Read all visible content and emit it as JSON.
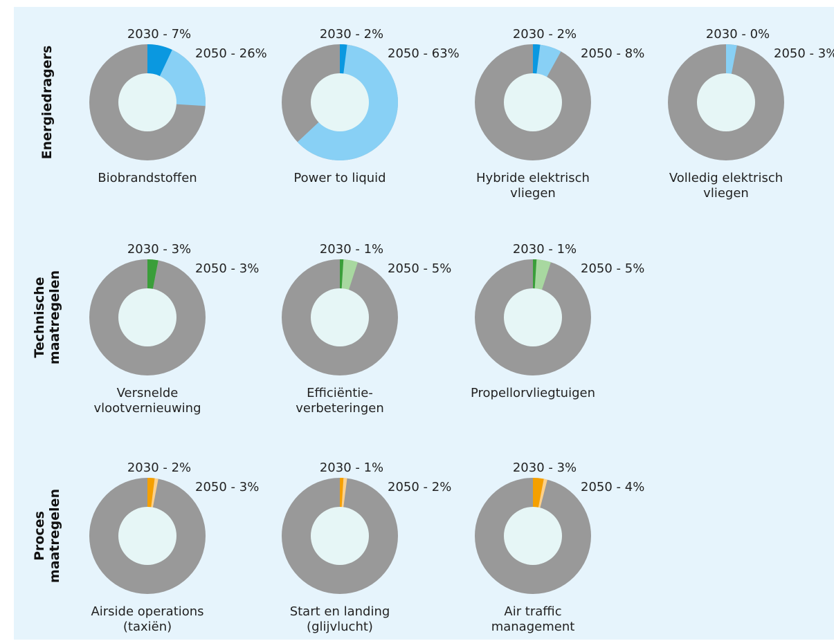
{
  "rows": [
    {
      "label": "Energiedragers"
    },
    {
      "label": "Technische\nmaatregelen"
    },
    {
      "label": "Proces\nmaatregelen"
    }
  ],
  "chart_data": [
    {
      "type": "donut",
      "title": "Biobrandstoffen",
      "values": [
        7,
        26
      ],
      "value_labels": [
        "2030 - 7%",
        "2050 - 26%"
      ],
      "colors": [
        "#0a98e0",
        "#88d0f5"
      ],
      "base_color": "#999999"
    },
    {
      "type": "donut",
      "title": "Power to liquid",
      "values": [
        2,
        63
      ],
      "value_labels": [
        "2030 - 2%",
        "2050 - 63%"
      ],
      "colors": [
        "#0a98e0",
        "#88d0f5"
      ],
      "base_color": "#999999"
    },
    {
      "type": "donut",
      "title": "Hybride elektrisch\nvliegen",
      "values": [
        2,
        8
      ],
      "value_labels": [
        "2030 - 2%",
        "2050 - 8%"
      ],
      "colors": [
        "#0a98e0",
        "#88d0f5"
      ],
      "base_color": "#999999"
    },
    {
      "type": "donut",
      "title": "Volledig elektrisch\nvliegen",
      "values": [
        0,
        3
      ],
      "value_labels": [
        "2030 - 0%",
        "2050 - 3%"
      ],
      "colors": [
        "#0a98e0",
        "#88d0f5"
      ],
      "base_color": "#999999"
    },
    {
      "type": "donut",
      "title": "Versnelde\nvlootvernieuwing",
      "values": [
        3,
        3
      ],
      "value_labels": [
        "2030 - 3%",
        "2050 - 3%"
      ],
      "colors": [
        "#3a9e3a",
        "#a8d8a0"
      ],
      "base_color": "#999999"
    },
    {
      "type": "donut",
      "title": "Efficiëntie-\nverbeteringen",
      "values": [
        1,
        5
      ],
      "value_labels": [
        "2030 - 1%",
        "2050 - 5%"
      ],
      "colors": [
        "#3a9e3a",
        "#a8d8a0"
      ],
      "base_color": "#999999"
    },
    {
      "type": "donut",
      "title": "Propellorvliegtuigen",
      "values": [
        1,
        5
      ],
      "value_labels": [
        "2030 - 1%",
        "2050 - 5%"
      ],
      "colors": [
        "#3a9e3a",
        "#a8d8a0"
      ],
      "base_color": "#999999"
    },
    {
      "type": "donut",
      "title": "Airside operations\n(taxiën)",
      "values": [
        2,
        3
      ],
      "value_labels": [
        "2030 - 2%",
        "2050 - 3%"
      ],
      "colors": [
        "#f5a000",
        "#fcd08a"
      ],
      "base_color": "#999999"
    },
    {
      "type": "donut",
      "title": "Start en landing\n(glijvlucht)",
      "values": [
        1,
        2
      ],
      "value_labels": [
        "2030 - 1%",
        "2050 - 2%"
      ],
      "colors": [
        "#f5a000",
        "#fcd08a"
      ],
      "base_color": "#999999"
    },
    {
      "type": "donut",
      "title": "Air traffic\nmanagement",
      "values": [
        3,
        4
      ],
      "value_labels": [
        "2030 - 3%",
        "2050 - 4%"
      ],
      "colors": [
        "#f5a000",
        "#fcd08a"
      ],
      "base_color": "#999999"
    }
  ]
}
